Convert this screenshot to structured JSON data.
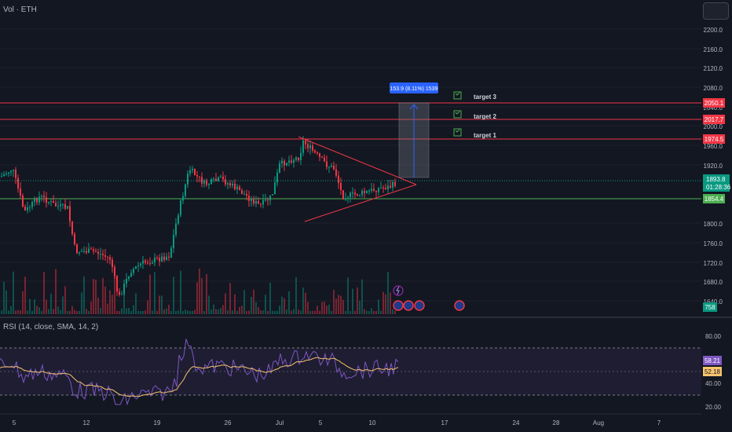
{
  "header": {
    "volume_label": "Vol · ETH"
  },
  "price_axis": {
    "ticks": [
      "2200.0",
      "2160.0",
      "2120.0",
      "2080.0",
      "2040.0",
      "2000.0",
      "1960.0",
      "1920.0",
      "1800.0",
      "1760.0",
      "1720.0",
      "1680.0",
      "1640.0"
    ]
  },
  "levels": [
    {
      "label": "2050.1",
      "color": "#f23645"
    },
    {
      "label": "2017.7",
      "color": "#f23645"
    },
    {
      "label": "1974.5",
      "color": "#f23645"
    },
    {
      "label": "1854.4",
      "color": "#4caf50"
    }
  ],
  "current_price": {
    "value": "1893.8",
    "countdown": "01:28:36",
    "color": "#089981"
  },
  "volume_badge": {
    "value": "758",
    "color": "#089981"
  },
  "measure_label": "153.9 (8.11%) 1539",
  "targets": [
    {
      "label": "target 3"
    },
    {
      "label": "target 2"
    },
    {
      "label": "target 1"
    }
  ],
  "rsi": {
    "title": "RSI (14, close, SMA, 14, 2)",
    "axis_ticks": [
      "80.00",
      "40.00",
      "20.00"
    ],
    "rsi_value": "58.21",
    "sma_value": "52.18",
    "rsi_color": "#7e57c2",
    "sma_color": "#f7c36e"
  },
  "time_axis": {
    "labels": [
      "5",
      "12",
      "19",
      "26",
      "Jul",
      "5",
      "10",
      "17",
      "24",
      "28",
      "Aug",
      "7"
    ]
  },
  "colors": {
    "bg": "#131722",
    "up": "#089981",
    "down": "#f23645",
    "grid": "#1e222d",
    "measure": "#2962ff"
  }
}
